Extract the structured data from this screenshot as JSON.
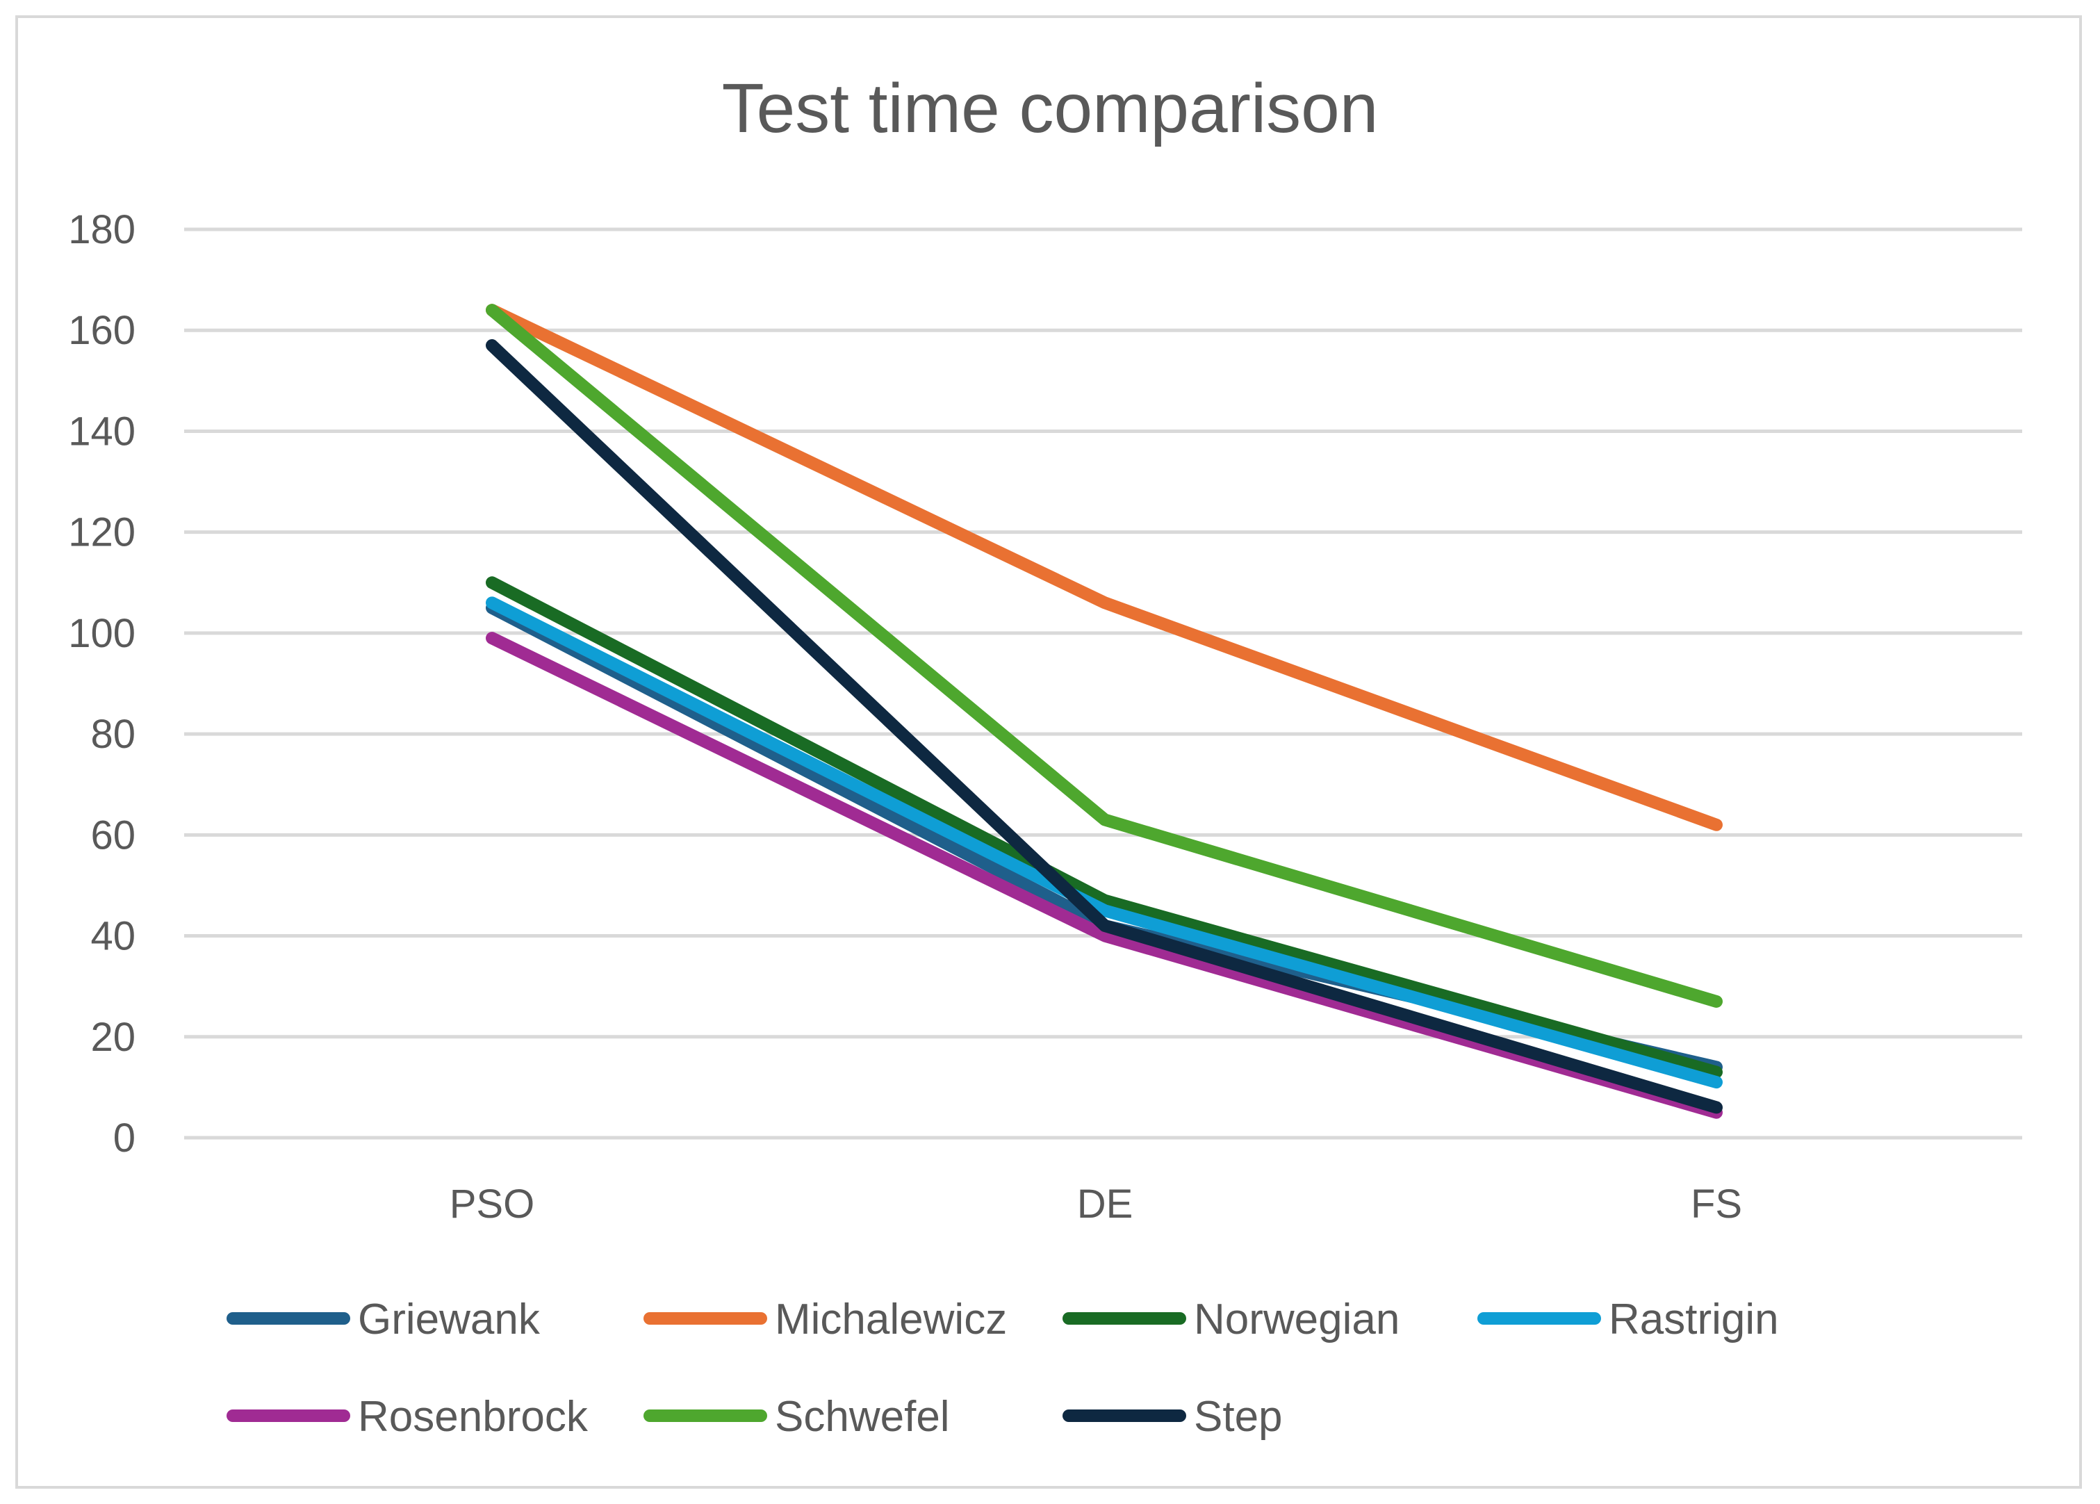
{
  "chart_data": {
    "type": "line",
    "title": "Test time comparison",
    "xlabel": "",
    "ylabel": "",
    "categories": [
      "PSO",
      "DE",
      "FS"
    ],
    "ylim": [
      0,
      180
    ],
    "yticks": [
      0,
      20,
      40,
      60,
      80,
      100,
      120,
      140,
      160,
      180
    ],
    "grid": true,
    "legend_position": "bottom",
    "series": [
      {
        "name": "Griewank",
        "color": "#1f5f8b",
        "values": [
          105,
          42,
          14
        ]
      },
      {
        "name": "Michalewicz",
        "color": "#e97132",
        "values": [
          164,
          106,
          62
        ]
      },
      {
        "name": "Norwegian",
        "color": "#196b24",
        "values": [
          110,
          47,
          13
        ]
      },
      {
        "name": "Rastrigin",
        "color": "#0f9ed5",
        "values": [
          106,
          45,
          11
        ]
      },
      {
        "name": "Rosenbrock",
        "color": "#a02b93",
        "values": [
          99,
          40,
          5
        ]
      },
      {
        "name": "Schwefel",
        "color": "#4ea72e",
        "values": [
          164,
          63,
          27
        ]
      },
      {
        "name": "Step",
        "color": "#0e2841",
        "values": [
          157,
          42,
          6
        ]
      }
    ]
  }
}
